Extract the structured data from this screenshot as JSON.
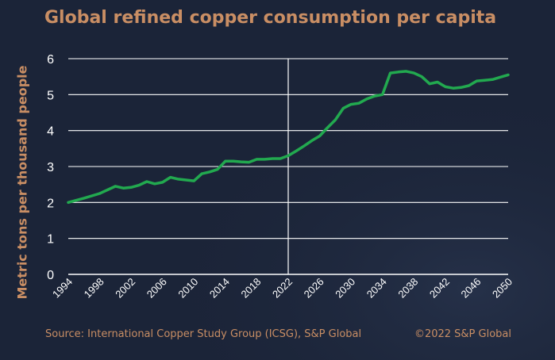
{
  "chart_data": {
    "type": "line",
    "title": "Global refined copper consumption per capita",
    "xlabel": "",
    "ylabel": "Metric tons per thousand people",
    "x": [
      1994,
      1996,
      1998,
      2000,
      2001,
      2002,
      2003,
      2004,
      2005,
      2006,
      2007,
      2008,
      2010,
      2011,
      2012,
      2013,
      2014,
      2015,
      2016,
      2017,
      2018,
      2019,
      2020,
      2021,
      2022,
      2023,
      2024,
      2025,
      2026,
      2027,
      2028,
      2029,
      2030,
      2031,
      2032,
      2033,
      2034,
      2035,
      2036,
      2037,
      2038,
      2039,
      2040,
      2041,
      2042,
      2043,
      2044,
      2045,
      2046,
      2047,
      2048,
      2050
    ],
    "series": [
      {
        "name": "Global refined copper consumption per capita",
        "values": [
          2.0,
          2.12,
          2.25,
          2.45,
          2.4,
          2.42,
          2.48,
          2.58,
          2.52,
          2.56,
          2.7,
          2.65,
          2.6,
          2.8,
          2.85,
          2.92,
          3.15,
          3.15,
          3.13,
          3.12,
          3.2,
          3.2,
          3.22,
          3.22,
          3.3,
          3.43,
          3.57,
          3.72,
          3.85,
          4.08,
          4.3,
          4.62,
          4.73,
          4.76,
          4.88,
          4.96,
          5.0,
          5.6,
          5.63,
          5.65,
          5.6,
          5.5,
          5.3,
          5.35,
          5.22,
          5.18,
          5.2,
          5.25,
          5.38,
          5.4,
          5.42,
          5.55
        ],
        "color": "#22a94f"
      }
    ],
    "xticks": [
      "1994",
      "1998",
      "2002",
      "2006",
      "2010",
      "2014",
      "2018",
      "2022",
      "2026",
      "2030",
      "2034",
      "2038",
      "2042",
      "2046",
      "2050"
    ],
    "yticks": [
      "0",
      "1",
      "2",
      "3",
      "4",
      "5",
      "6"
    ],
    "xlim": [
      1994,
      2050
    ],
    "ylim": [
      0,
      6
    ],
    "grid": true,
    "reference_line_x": 2022
  },
  "footer": {
    "source": "Source: International Copper Study Group (ICSG), S&P Global",
    "copyright": "©2022 S&P Global"
  },
  "colors": {
    "background": "#1b2438",
    "accent": "#c98e64",
    "line": "#22a94f",
    "grid": "#ffffff"
  }
}
